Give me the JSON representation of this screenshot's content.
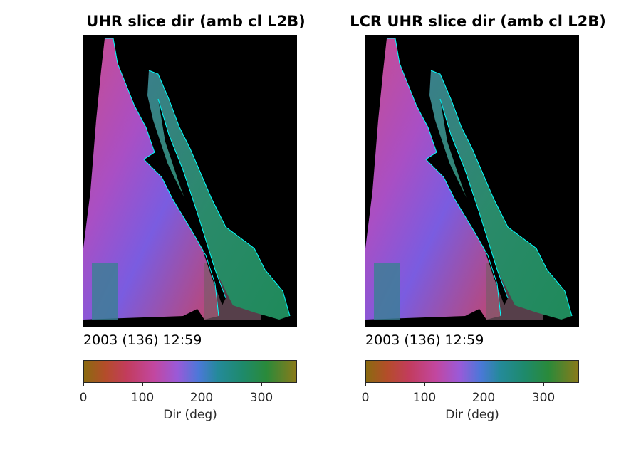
{
  "panels": [
    {
      "title": "UHR slice dir (amb cl L2B)",
      "date_label": "2003 (136) 12:59",
      "colorbar": {
        "ticks": [
          "0",
          "100",
          "200",
          "300"
        ],
        "label": "Dir (deg)",
        "range": [
          0,
          360
        ]
      }
    },
    {
      "title": "LCR UHR slice dir (amb cl L2B)",
      "date_label": "2003 (136) 12:59",
      "colorbar": {
        "ticks": [
          "0",
          "100",
          "200",
          "300"
        ],
        "label": "Dir (deg)",
        "range": [
          0,
          360
        ]
      }
    }
  ],
  "colors": {
    "land": "#000000",
    "coastline": "#00ffff",
    "pacific_high": "#c24a9a",
    "pacific_low": "#8a5ad8",
    "gulf": "#1e8a6a"
  }
}
